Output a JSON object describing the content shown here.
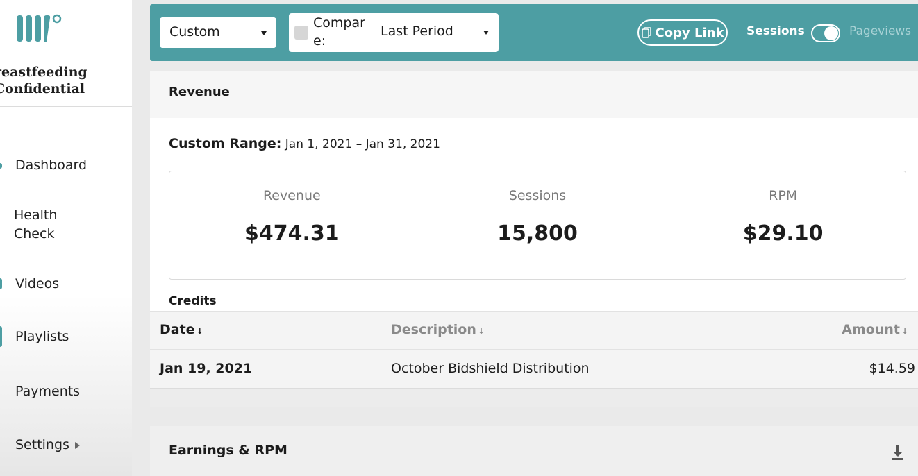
{
  "brand": {
    "name": "Breastfeeding Confidential",
    "line1": "reastfeeding",
    "line2": "Confidential"
  },
  "sidebar": {
    "items": [
      {
        "label": "Dashboard",
        "active": true
      },
      {
        "label": "Health Check"
      },
      {
        "label": "Videos"
      },
      {
        "label": "Playlists"
      },
      {
        "label": "Payments"
      },
      {
        "label": "Settings",
        "has_submenu": true
      }
    ]
  },
  "toolbar": {
    "range_value": "Custom",
    "compare_label": "Compare:",
    "compare_value": "Last Period",
    "copy_link_label": "Copy Link",
    "toggle_left_label": "Sessions",
    "toggle_right_label": "Pageviews"
  },
  "revenue": {
    "title": "Revenue",
    "range_label": "Custom Range:",
    "range_value": "Jan 1, 2021 – Jan 31, 2021",
    "metrics": [
      {
        "label": "Revenue",
        "value": "$474.31"
      },
      {
        "label": "Sessions",
        "value": "15,800"
      },
      {
        "label": "RPM",
        "value": "$29.10"
      }
    ],
    "credits_title": "Credits",
    "credits_table": {
      "columns": [
        "Date",
        "Description",
        "Amount"
      ],
      "rows": [
        {
          "date": "Jan 19, 2021",
          "description": "October Bidshield Distribution",
          "amount": "$14.59"
        }
      ]
    }
  },
  "earnings": {
    "title": "Earnings & RPM"
  },
  "colors": {
    "accent": "#4d9ea3",
    "toggle_off_text": "#a8d2d5"
  },
  "icons": [
    "logo-icon",
    "copy-icon",
    "download-icon",
    "chevron-down-icon",
    "caret-right-icon",
    "sort-arrow-icon"
  ]
}
